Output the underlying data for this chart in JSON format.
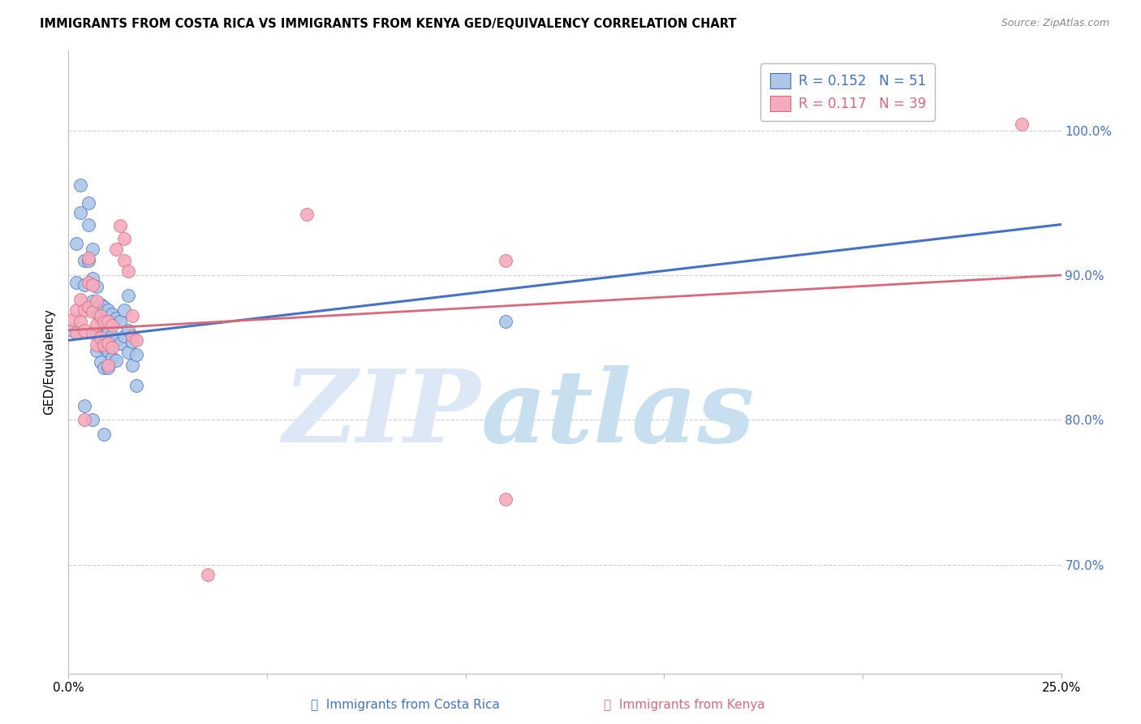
{
  "title": "IMMIGRANTS FROM COSTA RICA VS IMMIGRANTS FROM KENYA GED/EQUIVALENCY CORRELATION CHART",
  "source": "Source: ZipAtlas.com",
  "ylabel": "GED/Equivalency",
  "ytick_labels": [
    "100.0%",
    "90.0%",
    "80.0%",
    "70.0%"
  ],
  "ytick_values": [
    1.0,
    0.9,
    0.8,
    0.7
  ],
  "xlim": [
    0.0,
    0.25
  ],
  "ylim": [
    0.625,
    1.055
  ],
  "legend_R1": "R = 0.152",
  "legend_N1": "N = 51",
  "legend_R2": "R = 0.117",
  "legend_N2": "N = 39",
  "color_blue": "#adc6e8",
  "color_pink": "#f4abbe",
  "color_blue_line": "#4472c4",
  "color_pink_line": "#d9697a",
  "watermark_zip": "ZIP",
  "watermark_atlas": "atlas",
  "scatter_blue": [
    [
      0.001,
      0.862
    ],
    [
      0.002,
      0.895
    ],
    [
      0.002,
      0.922
    ],
    [
      0.003,
      0.962
    ],
    [
      0.003,
      0.943
    ],
    [
      0.004,
      0.91
    ],
    [
      0.004,
      0.893
    ],
    [
      0.005,
      0.91
    ],
    [
      0.005,
      0.935
    ],
    [
      0.005,
      0.95
    ],
    [
      0.006,
      0.898
    ],
    [
      0.006,
      0.918
    ],
    [
      0.006,
      0.882
    ],
    [
      0.007,
      0.892
    ],
    [
      0.007,
      0.875
    ],
    [
      0.007,
      0.861
    ],
    [
      0.007,
      0.848
    ],
    [
      0.008,
      0.88
    ],
    [
      0.008,
      0.87
    ],
    [
      0.008,
      0.856
    ],
    [
      0.008,
      0.84
    ],
    [
      0.009,
      0.878
    ],
    [
      0.009,
      0.863
    ],
    [
      0.009,
      0.85
    ],
    [
      0.009,
      0.836
    ],
    [
      0.01,
      0.876
    ],
    [
      0.01,
      0.862
    ],
    [
      0.01,
      0.848
    ],
    [
      0.01,
      0.836
    ],
    [
      0.01,
      0.86
    ],
    [
      0.011,
      0.873
    ],
    [
      0.011,
      0.858
    ],
    [
      0.011,
      0.843
    ],
    [
      0.012,
      0.87
    ],
    [
      0.012,
      0.855
    ],
    [
      0.012,
      0.841
    ],
    [
      0.013,
      0.868
    ],
    [
      0.013,
      0.853
    ],
    [
      0.014,
      0.876
    ],
    [
      0.014,
      0.858
    ],
    [
      0.015,
      0.886
    ],
    [
      0.015,
      0.862
    ],
    [
      0.015,
      0.847
    ],
    [
      0.016,
      0.854
    ],
    [
      0.016,
      0.838
    ],
    [
      0.017,
      0.845
    ],
    [
      0.017,
      0.824
    ],
    [
      0.004,
      0.81
    ],
    [
      0.006,
      0.8
    ],
    [
      0.009,
      0.79
    ],
    [
      0.11,
      0.868
    ]
  ],
  "scatter_pink": [
    [
      0.001,
      0.869
    ],
    [
      0.002,
      0.876
    ],
    [
      0.002,
      0.86
    ],
    [
      0.003,
      0.883
    ],
    [
      0.003,
      0.868
    ],
    [
      0.004,
      0.876
    ],
    [
      0.004,
      0.862
    ],
    [
      0.005,
      0.912
    ],
    [
      0.005,
      0.895
    ],
    [
      0.005,
      0.878
    ],
    [
      0.006,
      0.893
    ],
    [
      0.006,
      0.875
    ],
    [
      0.006,
      0.86
    ],
    [
      0.007,
      0.882
    ],
    [
      0.007,
      0.866
    ],
    [
      0.007,
      0.852
    ],
    [
      0.008,
      0.872
    ],
    [
      0.008,
      0.857
    ],
    [
      0.009,
      0.868
    ],
    [
      0.009,
      0.852
    ],
    [
      0.01,
      0.868
    ],
    [
      0.01,
      0.853
    ],
    [
      0.01,
      0.838
    ],
    [
      0.011,
      0.865
    ],
    [
      0.011,
      0.85
    ],
    [
      0.012,
      0.918
    ],
    [
      0.013,
      0.934
    ],
    [
      0.014,
      0.925
    ],
    [
      0.014,
      0.91
    ],
    [
      0.015,
      0.903
    ],
    [
      0.016,
      0.872
    ],
    [
      0.016,
      0.858
    ],
    [
      0.017,
      0.855
    ],
    [
      0.06,
      0.942
    ],
    [
      0.11,
      0.91
    ],
    [
      0.24,
      1.004
    ],
    [
      0.004,
      0.8
    ],
    [
      0.11,
      0.745
    ],
    [
      0.035,
      0.693
    ]
  ],
  "line_blue": [
    [
      0.0,
      0.855
    ],
    [
      0.25,
      0.935
    ]
  ],
  "line_pink": [
    [
      0.0,
      0.862
    ],
    [
      0.25,
      0.9
    ]
  ]
}
